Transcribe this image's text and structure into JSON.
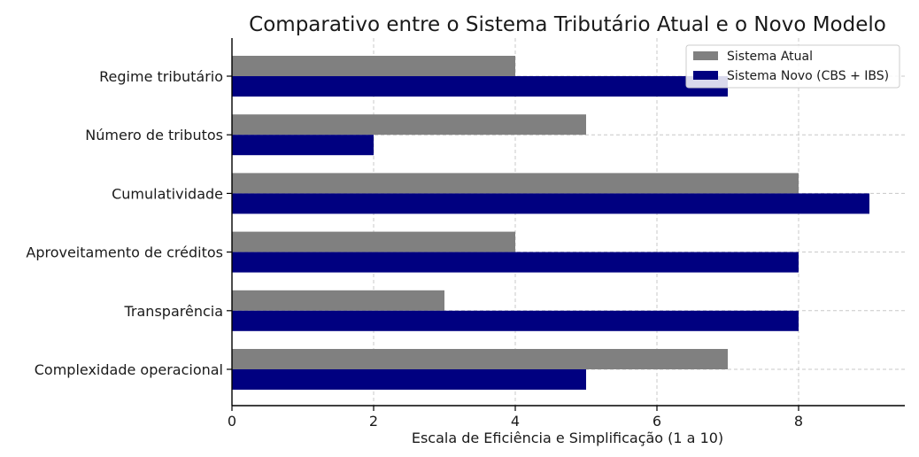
{
  "chart_data": {
    "type": "bar",
    "orientation": "horizontal",
    "title": "Comparativo entre o Sistema Tributário Atual e o Novo Modelo",
    "xlabel": "Escala de Eficiência e Simplificação (1 a 10)",
    "ylabel": "",
    "xlim": [
      0,
      9.5
    ],
    "x_ticks": [
      "0",
      "2",
      "4",
      "6",
      "8"
    ],
    "grid": true,
    "legend_position": "top-right",
    "categories": [
      "Regime tributário",
      "Número de tributos",
      "Cumulatividade",
      "Aproveitamento de créditos",
      "Transparência",
      "Complexidade operacional"
    ],
    "series": [
      {
        "name": "Sistema Atual",
        "color": "#808080",
        "values": [
          4,
          5,
          8,
          4,
          3,
          7
        ]
      },
      {
        "name": "Sistema Novo (CBS + IBS)",
        "color": "#000080",
        "values": [
          7,
          2,
          9,
          8,
          8,
          5
        ]
      }
    ]
  }
}
